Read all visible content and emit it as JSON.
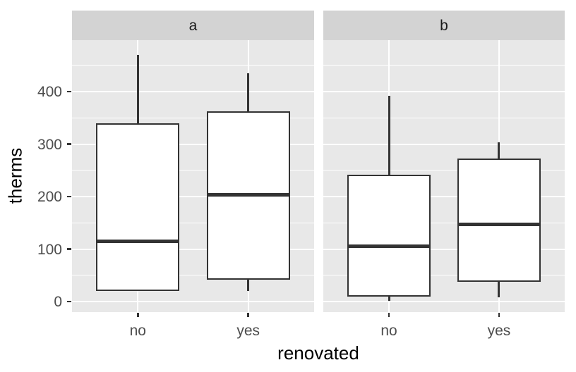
{
  "chart_data": {
    "type": "boxplot",
    "title": "",
    "xlabel": "renovated",
    "ylabel": "therms",
    "ylim": [
      -20,
      498
    ],
    "y_ticks": [
      0,
      100,
      200,
      300,
      400
    ],
    "y_minor_ticks": [
      50,
      150,
      250,
      350,
      450
    ],
    "categories": [
      "no",
      "yes"
    ],
    "grid": "on",
    "legend": "none",
    "facets": [
      {
        "label": "a",
        "boxes": [
          {
            "category": "no",
            "whisker_low": 20,
            "q1": 20,
            "median": 115,
            "q3": 340,
            "whisker_high": 470
          },
          {
            "category": "yes",
            "whisker_low": 20,
            "q1": 42,
            "median": 203,
            "q3": 362,
            "whisker_high": 435
          }
        ]
      },
      {
        "label": "b",
        "boxes": [
          {
            "category": "no",
            "whisker_low": 2,
            "q1": 10,
            "median": 106,
            "q3": 242,
            "whisker_high": 392
          },
          {
            "category": "yes",
            "whisker_low": 8,
            "q1": 38,
            "median": 147,
            "q3": 272,
            "whisker_high": 304
          }
        ]
      }
    ],
    "colors": {
      "panel_bg": "#e8e8e8",
      "strip_bg": "#d3d3d3",
      "grid": "#ffffff",
      "box_stroke": "#333333",
      "box_fill": "#ffffff",
      "axis_text": "#4d4d4d",
      "strip_text": "#1a1a1a",
      "axis_title": "#000000",
      "figure_bg": "#ffffff"
    }
  }
}
